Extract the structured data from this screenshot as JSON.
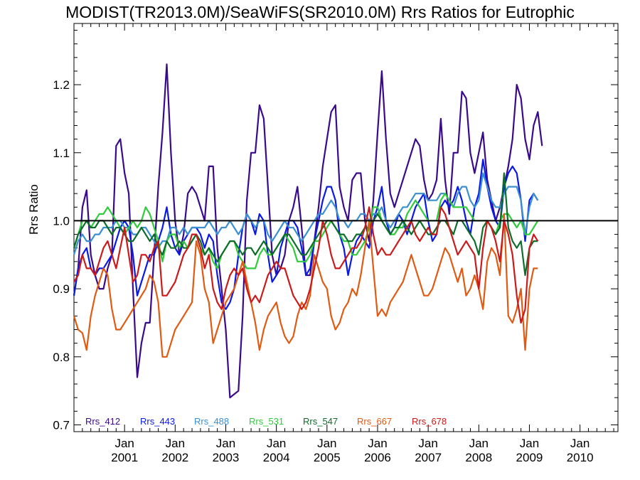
{
  "chart_data": {
    "type": "line",
    "title": "MODIST(TR2013.0M)/SeaWiFS(SR2010.0M)  Rrs Ratios for Eutrophic",
    "xlabel": "",
    "ylabel": "Rrs Ratio",
    "xlim": [
      2000.0,
      2010.75
    ],
    "ylim": [
      0.69,
      1.29
    ],
    "yticks": [
      0.7,
      0.8,
      0.9,
      1.0,
      1.1,
      1.2
    ],
    "ytick_labels": [
      "0.7",
      "0.8",
      "0.9",
      "1.0",
      "1.1",
      "1.2"
    ],
    "xticks": [
      2001,
      2002,
      2003,
      2004,
      2005,
      2006,
      2007,
      2008,
      2009,
      2010
    ],
    "xtick_labels": [
      [
        "Jan",
        "2001"
      ],
      [
        "Jan",
        "2002"
      ],
      [
        "Jan",
        "2003"
      ],
      [
        "Jan",
        "2004"
      ],
      [
        "Jan",
        "2005"
      ],
      [
        "Jan",
        "2006"
      ],
      [
        "Jan",
        "2007"
      ],
      [
        "Jan",
        "2008"
      ],
      [
        "Jan",
        "2009"
      ],
      [
        "Jan",
        "2010"
      ]
    ],
    "reference_line": 1.0,
    "legend_placement": "bottom",
    "grid": false,
    "x_start": 2000.0,
    "x_step_months": 1,
    "series": [
      {
        "name": "Rrs_412",
        "color": "#3a0a8c",
        "values": [
          0.89,
          0.93,
          1.02,
          1.045,
          0.95,
          0.92,
          0.9,
          0.9,
          0.93,
          0.95,
          1.11,
          1.12,
          1.07,
          1.04,
          0.9,
          0.77,
          0.82,
          0.85,
          0.85,
          0.95,
          1.05,
          1.13,
          1.23,
          1.1,
          1.0,
          0.95,
          0.98,
          1.04,
          1.05,
          1.04,
          1.02,
          1.0,
          1.08,
          1.08,
          0.96,
          0.9,
          0.84,
          0.74,
          0.745,
          0.75,
          0.86,
          1.03,
          1.1,
          1.1,
          1.17,
          1.15,
          1.05,
          0.95,
          0.92,
          0.93,
          0.95,
          1.0,
          1.02,
          1.05,
          0.99,
          0.92,
          0.92,
          0.97,
          1.02,
          1.08,
          1.12,
          1.16,
          1.17,
          1.05,
          1.02,
          1.0,
          1.06,
          1.07,
          1.07,
          1.0,
          0.97,
          1.03,
          1.13,
          1.22,
          1.12,
          1.04,
          1.02,
          1.04,
          1.06,
          1.08,
          1.1,
          1.12,
          1.11,
          1.06,
          1.03,
          1.04,
          1.06,
          1.15,
          1.06,
          1.01,
          1.1,
          1.1,
          1.19,
          1.18,
          1.1,
          1.07,
          1.1,
          1.13,
          1.06,
          1.03,
          1.0,
          1.02,
          1.05,
          1.08,
          1.12,
          1.2,
          1.18,
          1.12,
          1.09,
          1.14,
          1.16,
          1.11
        ]
      },
      {
        "name": "Rrs_443",
        "color": "#0a1ae6",
        "values": [
          0.89,
          0.93,
          0.95,
          0.96,
          0.93,
          0.92,
          0.93,
          0.93,
          0.94,
          0.95,
          0.97,
          0.99,
          1.0,
          0.99,
          0.95,
          0.89,
          0.91,
          0.93,
          0.95,
          0.95,
          0.97,
          0.99,
          1.02,
          0.98,
          0.96,
          0.95,
          0.97,
          0.98,
          0.99,
          0.99,
          0.98,
          0.96,
          0.98,
          0.97,
          0.92,
          0.88,
          0.87,
          0.88,
          0.9,
          0.95,
          0.99,
          1.01,
          1.0,
          0.98,
          1.01,
          1.0,
          0.95,
          0.91,
          0.92,
          0.96,
          0.98,
          1.0,
          1.0,
          0.99,
          0.96,
          0.92,
          0.93,
          0.97,
          1.0,
          1.03,
          1.05,
          1.05,
          1.03,
          0.98,
          0.96,
          0.92,
          0.95,
          0.97,
          0.98,
          0.97,
          0.96,
          1.0,
          1.02,
          1.05,
          1.0,
          0.98,
          0.99,
          1.01,
          1.0,
          0.98,
          1.0,
          1.02,
          1.03,
          1.04,
          1.0,
          0.97,
          0.98,
          1.02,
          1.03,
          1.02,
          1.03,
          1.05,
          1.03,
          1.0,
          0.98,
          1.02,
          1.04,
          1.09,
          1.05,
          1.02,
          1.0,
          0.99,
          1.05,
          1.07,
          1.08,
          1.07,
          1.03,
          0.97,
          1.03,
          1.04,
          1.03
        ]
      },
      {
        "name": "Rrs_488",
        "color": "#3a8fd1",
        "values": [
          0.95,
          0.97,
          0.98,
          0.97,
          0.97,
          0.98,
          0.98,
          0.99,
          0.99,
          0.99,
          1.0,
          1.0,
          0.99,
          0.99,
          0.98,
          0.98,
          0.99,
          0.99,
          0.98,
          0.97,
          0.96,
          0.97,
          0.97,
          0.99,
          0.99,
          0.98,
          0.99,
          0.98,
          0.99,
          0.99,
          0.99,
          0.99,
          1.0,
          0.99,
          0.98,
          0.99,
          0.99,
          1.0,
          0.99,
          0.98,
          0.99,
          1.01,
          1.0,
          0.99,
          1.0,
          1.0,
          0.98,
          0.97,
          0.98,
          0.99,
          1.0,
          0.99,
          0.99,
          0.98,
          0.97,
          0.98,
          0.99,
          1.0,
          1.01,
          1.01,
          1.02,
          1.03,
          1.02,
          1.0,
          1.0,
          0.99,
          1.0,
          1.0,
          1.01,
          1.01,
          1.0,
          1.01,
          1.01,
          1.02,
          1.0,
          0.99,
          1.0,
          1.01,
          1.02,
          1.02,
          1.03,
          1.04,
          1.04,
          1.04,
          1.03,
          1.03,
          1.03,
          1.04,
          1.04,
          1.03,
          1.02,
          1.04,
          1.05,
          1.05,
          1.03,
          1.02,
          1.03,
          1.07,
          1.05,
          1.03,
          1.02,
          1.02,
          1.04,
          1.05,
          1.05,
          1.05,
          1.03,
          0.98,
          1.02,
          1.04,
          1.03
        ]
      },
      {
        "name": "Rrs_531",
        "color": "#2ecc3a",
        "values": [
          0.96,
          0.98,
          1.0,
          1.0,
          0.99,
          1.0,
          1.01,
          1.01,
          1.02,
          1.01,
          1.0,
          0.99,
          0.98,
          0.99,
          1.0,
          0.99,
          1.0,
          1.02,
          1.01,
          0.99,
          0.97,
          0.94,
          0.97,
          0.98,
          0.98,
          0.96,
          0.97,
          0.96,
          0.97,
          0.98,
          0.96,
          0.95,
          0.96,
          0.94,
          0.93,
          0.95,
          0.96,
          0.97,
          0.97,
          0.95,
          0.94,
          0.93,
          0.93,
          0.93,
          0.95,
          0.96,
          0.95,
          0.95,
          0.96,
          0.97,
          0.98,
          0.97,
          0.96,
          0.94,
          0.94,
          0.94,
          0.95,
          0.97,
          0.97,
          0.98,
          0.99,
          1.0,
          0.99,
          0.98,
          0.97,
          0.97,
          0.95,
          0.95,
          0.96,
          0.97,
          0.99,
          1.02,
          1.02,
          1.0,
          0.99,
          0.98,
          0.98,
          0.99,
          0.99,
          1.01,
          1.02,
          1.03,
          1.02,
          1.01,
          1.0,
          1.0,
          1.0,
          1.03,
          1.04,
          1.03,
          1.02,
          1.02,
          1.02,
          1.02,
          1.01,
          1.0,
          1.0,
          1.0,
          1.0,
          0.99,
          0.98,
          1.0,
          1.01,
          1.01,
          1.0,
          0.99,
          1.0,
          0.98,
          0.98,
          0.99,
          1.0
        ]
      },
      {
        "name": "Rrs_547",
        "color": "#0d6e2a",
        "values": [
          0.96,
          0.98,
          0.99,
          1.0,
          0.99,
          0.99,
          1.0,
          1.0,
          0.99,
          0.98,
          0.99,
          0.99,
          0.98,
          0.97,
          0.97,
          0.98,
          0.99,
          0.98,
          0.97,
          0.98,
          0.96,
          0.95,
          0.97,
          0.96,
          0.96,
          0.97,
          0.96,
          0.96,
          0.97,
          0.98,
          0.97,
          0.95,
          0.96,
          0.95,
          0.94,
          0.95,
          0.96,
          0.97,
          0.97,
          0.96,
          0.95,
          0.96,
          0.96,
          0.95,
          0.96,
          0.97,
          0.96,
          0.95,
          0.96,
          0.97,
          0.98,
          0.98,
          0.97,
          0.96,
          0.95,
          0.95,
          0.96,
          0.97,
          0.98,
          0.99,
          1.0,
          1.0,
          0.99,
          0.98,
          0.98,
          0.97,
          0.97,
          0.98,
          0.98,
          0.99,
          0.99,
          1.0,
          1.01,
          1.0,
          0.99,
          0.98,
          0.99,
          0.99,
          1.0,
          0.99,
          0.98,
          0.99,
          1.0,
          0.99,
          0.98,
          0.98,
          0.99,
          1.0,
          1.0,
          0.99,
          0.98,
          1.0,
          1.0,
          0.99,
          0.98,
          0.97,
          0.95,
          0.99,
          1.0,
          0.99,
          0.98,
          0.99,
          1.07,
          0.99,
          0.97,
          0.96,
          0.97,
          0.92,
          0.96,
          0.97,
          0.97
        ]
      },
      {
        "name": "Rrs_667",
        "color": "#e05a12",
        "values": [
          0.86,
          0.84,
          0.835,
          0.81,
          0.86,
          0.89,
          0.91,
          0.93,
          0.92,
          0.87,
          0.84,
          0.84,
          0.85,
          0.86,
          0.87,
          0.88,
          0.89,
          0.9,
          0.92,
          0.91,
          0.88,
          0.8,
          0.8,
          0.82,
          0.84,
          0.85,
          0.86,
          0.87,
          0.88,
          0.97,
          0.95,
          0.9,
          0.88,
          0.82,
          0.84,
          0.86,
          0.88,
          0.89,
          0.9,
          0.92,
          0.94,
          0.91,
          0.88,
          0.85,
          0.81,
          0.84,
          0.86,
          0.87,
          0.88,
          0.85,
          0.83,
          0.82,
          0.83,
          0.86,
          0.88,
          0.87,
          0.89,
          0.95,
          0.93,
          0.91,
          0.9,
          0.86,
          0.84,
          0.85,
          0.87,
          0.88,
          0.9,
          0.89,
          0.92,
          0.96,
          1.0,
          0.93,
          0.86,
          0.87,
          0.86,
          0.88,
          0.89,
          0.9,
          0.91,
          0.93,
          0.95,
          0.93,
          0.91,
          0.89,
          0.89,
          0.9,
          0.92,
          0.94,
          0.96,
          0.95,
          0.93,
          0.91,
          0.93,
          0.89,
          0.9,
          0.92,
          0.9,
          0.87,
          0.94,
          0.96,
          0.95,
          0.92,
          1.01,
          0.86,
          0.85,
          0.87,
          0.9,
          0.81,
          0.9,
          0.93,
          0.93
        ]
      },
      {
        "name": "Rrs_678",
        "color": "#cc1a1a",
        "values": [
          0.91,
          0.92,
          0.95,
          0.93,
          0.93,
          0.92,
          0.94,
          0.96,
          0.97,
          0.95,
          0.93,
          0.96,
          0.99,
          0.95,
          0.91,
          0.92,
          0.95,
          0.95,
          0.94,
          0.96,
          0.97,
          0.89,
          0.89,
          0.9,
          0.91,
          0.93,
          0.95,
          0.96,
          0.98,
          0.98,
          0.96,
          0.93,
          0.95,
          0.9,
          0.88,
          0.87,
          0.9,
          0.92,
          0.93,
          0.92,
          0.93,
          0.9,
          0.88,
          0.89,
          0.88,
          0.9,
          0.92,
          0.93,
          0.94,
          0.93,
          0.93,
          0.91,
          0.89,
          0.88,
          0.87,
          0.88,
          0.9,
          0.93,
          0.96,
          1.0,
          0.98,
          0.95,
          0.93,
          0.93,
          0.94,
          0.95,
          0.96,
          0.96,
          0.97,
          0.99,
          1.02,
          0.98,
          0.95,
          0.96,
          0.95,
          0.95,
          0.96,
          0.97,
          0.98,
          0.99,
          1.0,
          0.98,
          0.97,
          0.98,
          0.99,
          0.98,
          0.98,
          1.02,
          1.01,
          0.99,
          0.97,
          0.95,
          0.96,
          0.97,
          0.96,
          0.95,
          0.9,
          0.96,
          1.0,
          0.99,
          0.97,
          0.94,
          1.0,
          0.98,
          0.95,
          0.89,
          0.85,
          0.87,
          0.96,
          0.98,
          0.97
        ]
      }
    ]
  }
}
